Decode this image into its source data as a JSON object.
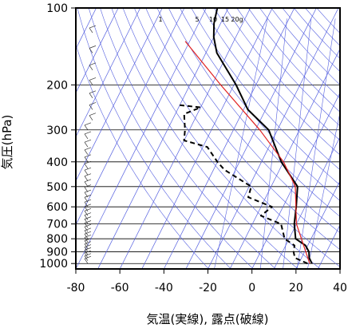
{
  "chart_data": {
    "type": "line",
    "subtype": "skew-T log-P thermodynamic diagram",
    "xlabel": "気温(実線), 露点(破線)",
    "ylabel": "気圧(hPa)",
    "x_ticks": [
      -80,
      -60,
      -40,
      -20,
      0,
      20,
      40
    ],
    "y_ticks": [
      100,
      200,
      300,
      400,
      500,
      600,
      700,
      800,
      900,
      1000
    ],
    "xlim": [
      -80,
      40
    ],
    "ylim": [
      1050,
      100
    ],
    "y_scale": "log",
    "grid": true,
    "mixing_ratio_labels": [
      "1",
      "5",
      "10",
      "15",
      "20g"
    ],
    "series": [
      {
        "name": "",
        "style": "solid",
        "color": "#000000",
        "points": [
          {
            "x": 26,
            "p": 1000
          },
          {
            "x": 23.5,
            "p": 950
          },
          {
            "x": 22,
            "p": 900
          },
          {
            "x": 19,
            "p": 850
          },
          {
            "x": 13,
            "p": 800
          },
          {
            "x": 9,
            "p": 700
          },
          {
            "x": 6,
            "p": 600
          },
          {
            "x": 2,
            "p": 500
          },
          {
            "x": -11,
            "p": 400
          },
          {
            "x": -24,
            "p": 300
          },
          {
            "x": -38,
            "p": 250
          },
          {
            "x": -49,
            "p": 200
          },
          {
            "x": -65,
            "p": 150
          },
          {
            "x": -70,
            "p": 130
          },
          {
            "x": -73,
            "p": 115
          },
          {
            "x": -75,
            "p": 100
          }
        ]
      },
      {
        "name": "",
        "style": "dashed",
        "color": "#000000",
        "points": [
          {
            "x": 24,
            "p": 1000
          },
          {
            "x": 17,
            "p": 950
          },
          {
            "x": 15,
            "p": 900
          },
          {
            "x": 14,
            "p": 850
          },
          {
            "x": 8,
            "p": 800
          },
          {
            "x": 3,
            "p": 700
          },
          {
            "x": -8,
            "p": 650
          },
          {
            "x": -5,
            "p": 600
          },
          {
            "x": -18,
            "p": 550
          },
          {
            "x": -19,
            "p": 500
          },
          {
            "x": -35,
            "p": 430
          },
          {
            "x": -40,
            "p": 400
          },
          {
            "x": -48,
            "p": 350
          },
          {
            "x": -60,
            "p": 330
          },
          {
            "x": -62,
            "p": 300
          },
          {
            "x": -66,
            "p": 260
          },
          {
            "x": -60,
            "p": 245
          },
          {
            "x": -70,
            "p": 240
          }
        ]
      },
      {
        "name": "",
        "style": "solid",
        "color": "#e02020",
        "points": [
          {
            "x": 25,
            "p": 1000
          },
          {
            "x": 10,
            "p": 700
          },
          {
            "x": 1,
            "p": 500
          },
          {
            "x": -10,
            "p": 400
          },
          {
            "x": -28,
            "p": 300
          },
          {
            "x": -56,
            "p": 200
          },
          {
            "x": -82,
            "p": 135
          }
        ]
      }
    ],
    "wind_barbs_note": "wind barbs drawn along left side from 1000 to 100 hPa"
  }
}
